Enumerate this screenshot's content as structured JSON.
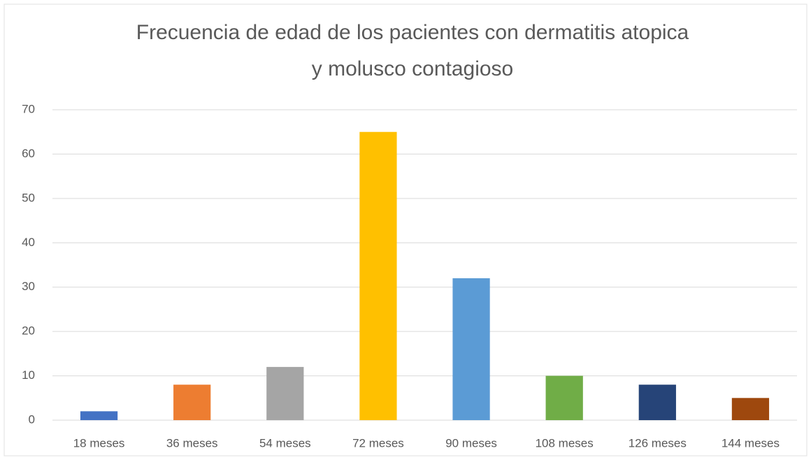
{
  "chart_data": {
    "type": "bar",
    "title": [
      "Frecuencia de edad de los pacientes con dermatitis atopica",
      "y molusco contagioso"
    ],
    "categories": [
      "18 meses",
      "36 meses",
      "54 meses",
      "72 meses",
      "90 meses",
      "108 meses",
      "126 meses",
      "144 meses"
    ],
    "values": [
      2,
      8,
      12,
      65,
      32,
      10,
      8,
      5
    ],
    "colors": [
      "#4472c4",
      "#ed7d31",
      "#a5a5a5",
      "#ffc000",
      "#5b9bd5",
      "#70ad47",
      "#264478",
      "#9e480e"
    ],
    "ylim": [
      0,
      70
    ],
    "yticks": [
      0,
      10,
      20,
      30,
      40,
      50,
      60,
      70
    ],
    "grid": true
  }
}
